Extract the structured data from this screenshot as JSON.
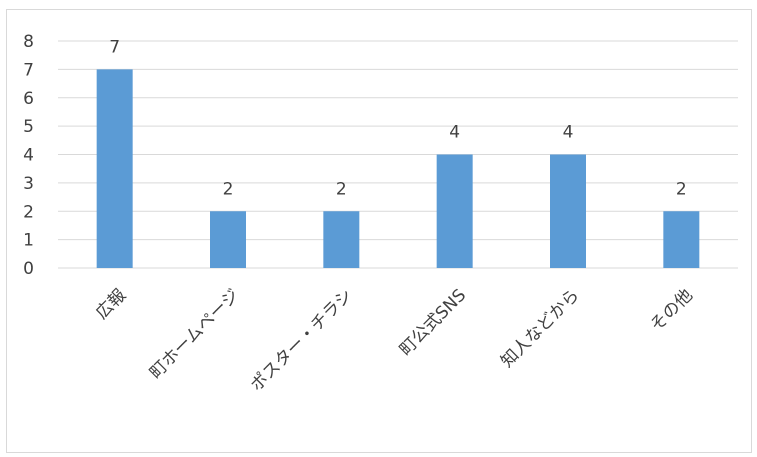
{
  "chart_data": {
    "type": "bar",
    "title": "",
    "xlabel": "",
    "ylabel": "",
    "categories": [
      "広報",
      "町ホームページ",
      "ポスター・チラシ",
      "町公式SNS",
      "知人などから",
      "その他"
    ],
    "values": [
      7,
      2,
      2,
      4,
      4,
      2
    ],
    "data_labels": [
      "7",
      "2",
      "2",
      "4",
      "4",
      "2"
    ],
    "ylim": [
      0,
      8
    ],
    "y_ticks": [
      "0",
      "1",
      "2",
      "3",
      "4",
      "5",
      "6",
      "7",
      "8"
    ],
    "grid": true,
    "legend": "none",
    "bar_color": "#5b9bd5",
    "grid_color": "#d9d9d9",
    "text_color": "#404040"
  }
}
